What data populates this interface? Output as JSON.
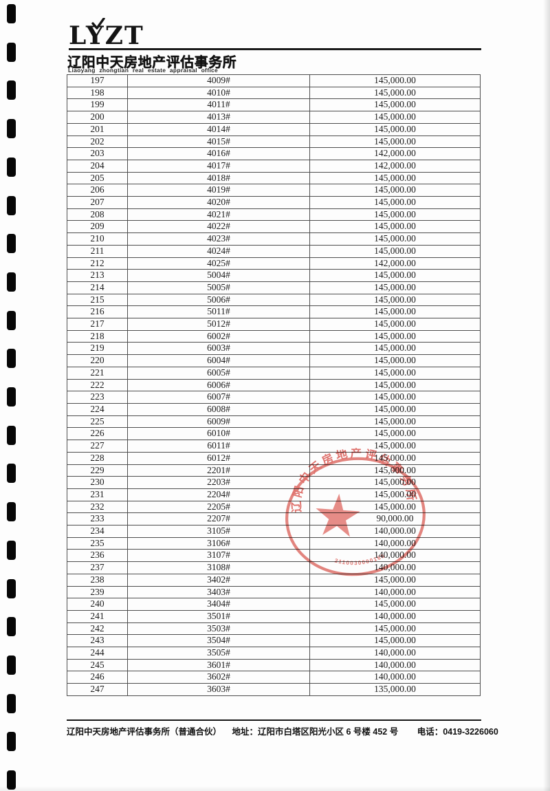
{
  "header": {
    "logo_text": "LYZT",
    "company_cn": "辽阳中天房地产评估事务所",
    "company_en": "Liaoyang zhongtian real estate appraisal office"
  },
  "table": {
    "rows": [
      [
        "197",
        "4009#",
        "145,000.00"
      ],
      [
        "198",
        "4010#",
        "145,000.00"
      ],
      [
        "199",
        "4011#",
        "145,000.00"
      ],
      [
        "200",
        "4013#",
        "145,000.00"
      ],
      [
        "201",
        "4014#",
        "145,000.00"
      ],
      [
        "202",
        "4015#",
        "145,000.00"
      ],
      [
        "203",
        "4016#",
        "142,000.00"
      ],
      [
        "204",
        "4017#",
        "142,000.00"
      ],
      [
        "205",
        "4018#",
        "145,000.00"
      ],
      [
        "206",
        "4019#",
        "145,000.00"
      ],
      [
        "207",
        "4020#",
        "145,000.00"
      ],
      [
        "208",
        "4021#",
        "145,000.00"
      ],
      [
        "209",
        "4022#",
        "145,000.00"
      ],
      [
        "210",
        "4023#",
        "145,000.00"
      ],
      [
        "211",
        "4024#",
        "145,000.00"
      ],
      [
        "212",
        "4025#",
        "142,000.00"
      ],
      [
        "213",
        "5004#",
        "145,000.00"
      ],
      [
        "214",
        "5005#",
        "145,000.00"
      ],
      [
        "215",
        "5006#",
        "145,000.00"
      ],
      [
        "216",
        "5011#",
        "145,000.00"
      ],
      [
        "217",
        "5012#",
        "145,000.00"
      ],
      [
        "218",
        "6002#",
        "145,000.00"
      ],
      [
        "219",
        "6003#",
        "145,000.00"
      ],
      [
        "220",
        "6004#",
        "145,000.00"
      ],
      [
        "221",
        "6005#",
        "145,000.00"
      ],
      [
        "222",
        "6006#",
        "145,000.00"
      ],
      [
        "223",
        "6007#",
        "145,000.00"
      ],
      [
        "224",
        "6008#",
        "145,000.00"
      ],
      [
        "225",
        "6009#",
        "145,000.00"
      ],
      [
        "226",
        "6010#",
        "145,000.00"
      ],
      [
        "227",
        "6011#",
        "145,000.00"
      ],
      [
        "228",
        "6012#",
        "145,000.00"
      ],
      [
        "229",
        "2201#",
        "145,000.00"
      ],
      [
        "230",
        "2203#",
        "145,000.00"
      ],
      [
        "231",
        "2204#",
        "145,000.00"
      ],
      [
        "232",
        "2205#",
        "145,000.00"
      ],
      [
        "233",
        "2207#",
        "90,000.00"
      ],
      [
        "234",
        "3105#",
        "140,000.00"
      ],
      [
        "235",
        "3106#",
        "140,000.00"
      ],
      [
        "236",
        "3107#",
        "140,000.00"
      ],
      [
        "237",
        "3108#",
        "140,000.00"
      ],
      [
        "238",
        "3402#",
        "145,000.00"
      ],
      [
        "239",
        "3403#",
        "140,000.00"
      ],
      [
        "240",
        "3404#",
        "145,000.00"
      ],
      [
        "241",
        "3501#",
        "140,000.00"
      ],
      [
        "242",
        "3503#",
        "145,000.00"
      ],
      [
        "243",
        "3504#",
        "145,000.00"
      ],
      [
        "244",
        "3505#",
        "140,000.00"
      ],
      [
        "245",
        "3601#",
        "140,000.00"
      ],
      [
        "246",
        "3602#",
        "140,000.00"
      ],
      [
        "247",
        "3603#",
        "135,000.00"
      ]
    ]
  },
  "stamp": {
    "ring_text": "辽阳中天房地产评估事务所",
    "serial": "2110030000166",
    "color": "#dc5a54"
  },
  "footer": {
    "company": "辽阳中天房地产评估事务所（普通合伙）",
    "address": "地址：辽阳市白塔区阳光小区 6 号楼 452 号",
    "phone": "电话：0419-3226060"
  }
}
